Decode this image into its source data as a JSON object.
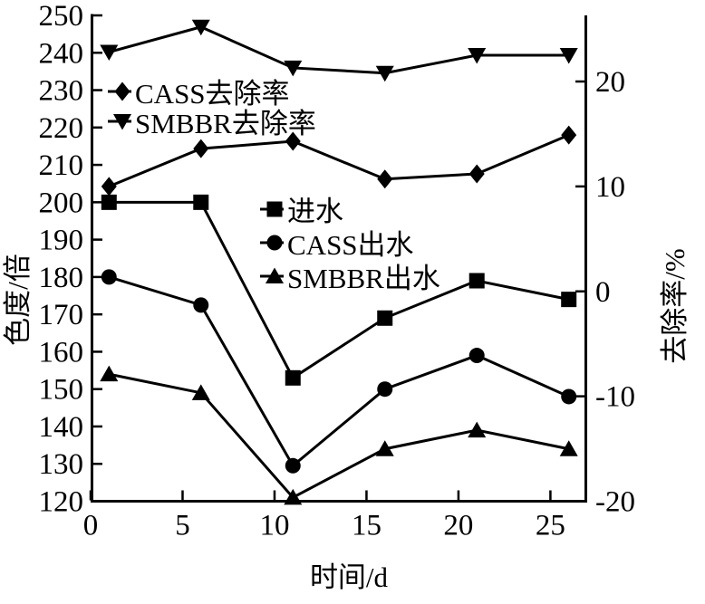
{
  "chart_data": {
    "type": "line",
    "x": [
      1,
      6,
      11,
      16,
      21,
      26
    ],
    "x_axis": {
      "label": "时间/d",
      "ticks": [
        0,
        5,
        10,
        15,
        20,
        25
      ],
      "range": [
        0,
        27
      ]
    },
    "left_axis": {
      "label": "色度/倍",
      "ticks": [
        250,
        240,
        230,
        220,
        210,
        200,
        190,
        180,
        170,
        160,
        150,
        140,
        130,
        120
      ],
      "range": [
        120,
        250
      ]
    },
    "right_axis": {
      "label": "去除率/%",
      "ticks": [
        20,
        10,
        0,
        -10,
        -20
      ],
      "range": [
        -20,
        26.3
      ]
    },
    "grid": false,
    "legend_positions": {
      "removal": "upper-left-inside",
      "concentration": "center-inside"
    },
    "colors": {
      "foreground": "#000000",
      "background": "#ffffff"
    },
    "series": [
      {
        "key": "influent",
        "name": "进水",
        "axis": "left",
        "marker": "square",
        "values": [
          200,
          200,
          153,
          169,
          179,
          174
        ]
      },
      {
        "key": "cass-effluent",
        "name": "CASS出水",
        "axis": "left",
        "marker": "circle",
        "values": [
          180,
          172.5,
          129.5,
          150,
          159,
          148
        ]
      },
      {
        "key": "smbbr-effluent",
        "name": "SMBBR出水",
        "axis": "left",
        "marker": "triangle-up",
        "values": [
          154,
          149,
          121,
          134,
          139,
          134
        ]
      },
      {
        "key": "cass-removal",
        "name": "CASS去除率",
        "axis": "right",
        "marker": "diamond",
        "values": [
          10,
          13.6,
          14.3,
          10.7,
          11.2,
          14.9
        ]
      },
      {
        "key": "smbbr-removal",
        "name": "SMBBR去除率",
        "axis": "right",
        "marker": "triangle-down",
        "values": [
          22.8,
          25.2,
          21.3,
          20.8,
          22.5,
          22.5
        ]
      }
    ]
  }
}
